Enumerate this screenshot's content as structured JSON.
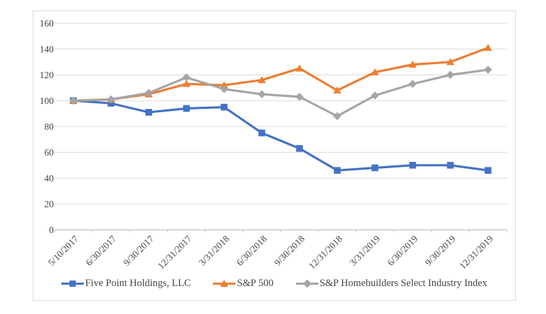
{
  "chart_data": {
    "type": "line",
    "title": "",
    "x_labels": [
      "5/10/2017",
      "6/30/2017",
      "9/30/2017",
      "12/31/2017",
      "3/31/2018",
      "6/30/2018",
      "9/30/2018",
      "12/31/2018",
      "3/31/2019",
      "6/30/2019",
      "9/30/2019",
      "12/31/2019"
    ],
    "series": [
      {
        "name": "Five Point Holdings, LLC",
        "color": "#4472C4",
        "marker": "square",
        "values": [
          100,
          98,
          91,
          94,
          95,
          75,
          63,
          46,
          48,
          50,
          50,
          46
        ]
      },
      {
        "name": "S&P 500",
        "color": "#ED7D31",
        "marker": "triangle",
        "values": [
          100,
          101,
          105,
          113,
          112,
          116,
          125,
          108,
          122,
          128,
          130,
          141
        ]
      },
      {
        "name": "S&P Homebuilders Select Industry Index",
        "color": "#A5A5A5",
        "marker": "diamond",
        "values": [
          100,
          101,
          106,
          118,
          109,
          105,
          103,
          88,
          104,
          113,
          120,
          124
        ]
      }
    ],
    "y_axis": {
      "min": 0,
      "max": 160,
      "step": 20,
      "tick_labels": [
        "0",
        "20",
        "40",
        "60",
        "80",
        "100",
        "120",
        "140",
        "160"
      ]
    },
    "grid": true,
    "legend_position": "bottom"
  },
  "colors": {
    "background": "#FFFFFF",
    "chart_border": "#D9D9D9",
    "gridline": "#D9D9D9",
    "axis_line": "#BFBFBF",
    "label_text": "#454545"
  }
}
